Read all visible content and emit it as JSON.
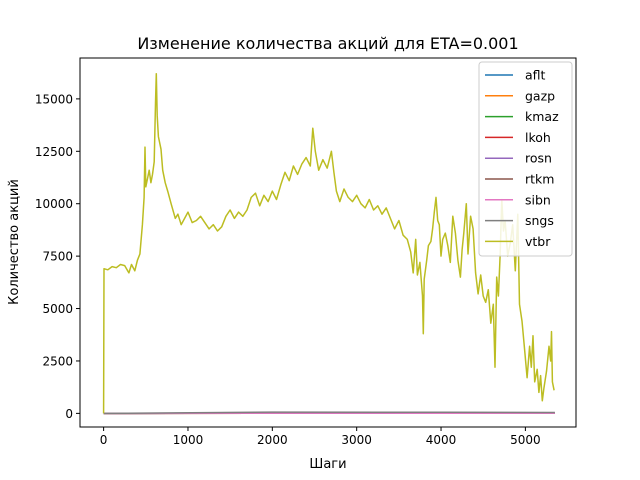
{
  "chart_data": {
    "type": "line",
    "title": "Изменение количества акций для ETA=0.001",
    "xlabel": "Шаги",
    "ylabel": "Количество акций",
    "xlim": [
      -280,
      5600
    ],
    "ylim": [
      -650,
      16950
    ],
    "xticks": [
      0,
      1000,
      2000,
      3000,
      4000,
      5000
    ],
    "yticks": [
      0,
      2500,
      5000,
      7500,
      10000,
      12500,
      15000
    ],
    "grid": false,
    "legend_position": "top-right",
    "series": [
      {
        "name": "aflt",
        "color": "#1f77b4",
        "points": [
          [
            0,
            0
          ],
          [
            2000,
            20
          ],
          [
            4000,
            15
          ],
          [
            5350,
            10
          ]
        ]
      },
      {
        "name": "gazp",
        "color": "#ff7f0e",
        "points": [
          [
            0,
            0
          ],
          [
            2000,
            10
          ],
          [
            4000,
            12
          ],
          [
            5350,
            8
          ]
        ]
      },
      {
        "name": "kmaz",
        "color": "#2ca02c",
        "points": [
          [
            0,
            0
          ],
          [
            2000,
            15
          ],
          [
            4000,
            10
          ],
          [
            5350,
            5
          ]
        ]
      },
      {
        "name": "lkoh",
        "color": "#d62728",
        "points": [
          [
            0,
            0
          ],
          [
            2000,
            5
          ],
          [
            4000,
            3
          ],
          [
            5350,
            2
          ]
        ]
      },
      {
        "name": "rosn",
        "color": "#9467bd",
        "points": [
          [
            0,
            0
          ],
          [
            2000,
            10
          ],
          [
            4000,
            8
          ],
          [
            5350,
            6
          ]
        ]
      },
      {
        "name": "rtkm",
        "color": "#8c564b",
        "points": [
          [
            0,
            0
          ],
          [
            2000,
            20
          ],
          [
            4000,
            25
          ],
          [
            5350,
            15
          ]
        ]
      },
      {
        "name": "sibn",
        "color": "#e377c2",
        "points": [
          [
            0,
            0
          ],
          [
            2000,
            15
          ],
          [
            4000,
            10
          ],
          [
            5350,
            8
          ]
        ]
      },
      {
        "name": "sngs",
        "color": "#7f7f7f",
        "points": [
          [
            0,
            0
          ],
          [
            2000,
            60
          ],
          [
            4000,
            50
          ],
          [
            5350,
            40
          ]
        ]
      },
      {
        "name": "vtbr",
        "color": "#bcbd22",
        "points": [
          [
            0,
            0
          ],
          [
            5,
            6900
          ],
          [
            50,
            6850
          ],
          [
            100,
            7000
          ],
          [
            150,
            6950
          ],
          [
            200,
            7100
          ],
          [
            250,
            7050
          ],
          [
            300,
            6700
          ],
          [
            330,
            7100
          ],
          [
            370,
            6800
          ],
          [
            400,
            7300
          ],
          [
            430,
            7600
          ],
          [
            460,
            9000
          ],
          [
            480,
            10300
          ],
          [
            490,
            12700
          ],
          [
            500,
            10800
          ],
          [
            520,
            11200
          ],
          [
            540,
            11600
          ],
          [
            560,
            11000
          ],
          [
            580,
            11400
          ],
          [
            600,
            12000
          ],
          [
            615,
            14800
          ],
          [
            625,
            16200
          ],
          [
            635,
            14200
          ],
          [
            650,
            13200
          ],
          [
            680,
            12600
          ],
          [
            700,
            11600
          ],
          [
            730,
            11000
          ],
          [
            760,
            10600
          ],
          [
            800,
            10000
          ],
          [
            850,
            9300
          ],
          [
            880,
            9500
          ],
          [
            920,
            9000
          ],
          [
            960,
            9300
          ],
          [
            1000,
            9600
          ],
          [
            1050,
            9100
          ],
          [
            1100,
            9200
          ],
          [
            1150,
            9400
          ],
          [
            1200,
            9100
          ],
          [
            1250,
            8800
          ],
          [
            1300,
            9000
          ],
          [
            1350,
            8700
          ],
          [
            1400,
            8900
          ],
          [
            1450,
            9400
          ],
          [
            1500,
            9700
          ],
          [
            1550,
            9300
          ],
          [
            1600,
            9600
          ],
          [
            1650,
            9400
          ],
          [
            1700,
            9700
          ],
          [
            1750,
            10300
          ],
          [
            1800,
            10500
          ],
          [
            1850,
            9900
          ],
          [
            1900,
            10400
          ],
          [
            1950,
            10100
          ],
          [
            2000,
            10600
          ],
          [
            2050,
            10200
          ],
          [
            2100,
            10900
          ],
          [
            2150,
            11500
          ],
          [
            2200,
            11100
          ],
          [
            2250,
            11800
          ],
          [
            2300,
            11400
          ],
          [
            2350,
            11900
          ],
          [
            2400,
            12200
          ],
          [
            2450,
            11800
          ],
          [
            2480,
            13600
          ],
          [
            2510,
            12500
          ],
          [
            2550,
            11600
          ],
          [
            2600,
            12100
          ],
          [
            2650,
            11700
          ],
          [
            2700,
            12500
          ],
          [
            2730,
            11500
          ],
          [
            2760,
            10600
          ],
          [
            2800,
            10100
          ],
          [
            2850,
            10700
          ],
          [
            2900,
            10300
          ],
          [
            2950,
            10100
          ],
          [
            3000,
            10400
          ],
          [
            3050,
            10000
          ],
          [
            3100,
            9800
          ],
          [
            3150,
            10200
          ],
          [
            3200,
            9700
          ],
          [
            3250,
            9900
          ],
          [
            3300,
            9500
          ],
          [
            3350,
            9800
          ],
          [
            3400,
            9300
          ],
          [
            3450,
            8800
          ],
          [
            3500,
            9200
          ],
          [
            3550,
            8500
          ],
          [
            3600,
            8300
          ],
          [
            3640,
            7700
          ],
          [
            3670,
            6700
          ],
          [
            3700,
            8300
          ],
          [
            3720,
            6600
          ],
          [
            3750,
            7200
          ],
          [
            3780,
            5600
          ],
          [
            3790,
            3800
          ],
          [
            3800,
            6400
          ],
          [
            3830,
            7300
          ],
          [
            3850,
            8000
          ],
          [
            3880,
            8200
          ],
          [
            3900,
            8800
          ],
          [
            3920,
            9600
          ],
          [
            3940,
            10300
          ],
          [
            3960,
            9200
          ],
          [
            3980,
            9000
          ],
          [
            4000,
            7500
          ],
          [
            4020,
            8300
          ],
          [
            4050,
            8600
          ],
          [
            4080,
            8000
          ],
          [
            4110,
            7200
          ],
          [
            4140,
            9400
          ],
          [
            4170,
            8600
          ],
          [
            4200,
            7300
          ],
          [
            4230,
            6500
          ],
          [
            4250,
            7800
          ],
          [
            4270,
            8600
          ],
          [
            4300,
            10000
          ],
          [
            4320,
            7600
          ],
          [
            4350,
            9400
          ],
          [
            4380,
            8800
          ],
          [
            4410,
            6700
          ],
          [
            4440,
            5700
          ],
          [
            4470,
            6600
          ],
          [
            4500,
            5600
          ],
          [
            4530,
            5300
          ],
          [
            4560,
            5900
          ],
          [
            4590,
            4300
          ],
          [
            4620,
            5200
          ],
          [
            4640,
            2200
          ],
          [
            4660,
            6500
          ],
          [
            4680,
            5600
          ],
          [
            4700,
            7500
          ],
          [
            4720,
            10200
          ],
          [
            4740,
            8700
          ],
          [
            4760,
            9200
          ],
          [
            4790,
            7500
          ],
          [
            4820,
            8100
          ],
          [
            4850,
            9000
          ],
          [
            4880,
            6800
          ],
          [
            4910,
            9500
          ],
          [
            4930,
            5200
          ],
          [
            4960,
            4400
          ],
          [
            4990,
            3100
          ],
          [
            5020,
            1700
          ],
          [
            5050,
            3200
          ],
          [
            5070,
            2200
          ],
          [
            5090,
            3700
          ],
          [
            5110,
            1500
          ],
          [
            5140,
            2100
          ],
          [
            5160,
            1000
          ],
          [
            5180,
            1800
          ],
          [
            5200,
            600
          ],
          [
            5220,
            1200
          ],
          [
            5250,
            2000
          ],
          [
            5280,
            3200
          ],
          [
            5300,
            2500
          ],
          [
            5310,
            3900
          ],
          [
            5320,
            1500
          ],
          [
            5340,
            1100
          ]
        ]
      }
    ]
  }
}
